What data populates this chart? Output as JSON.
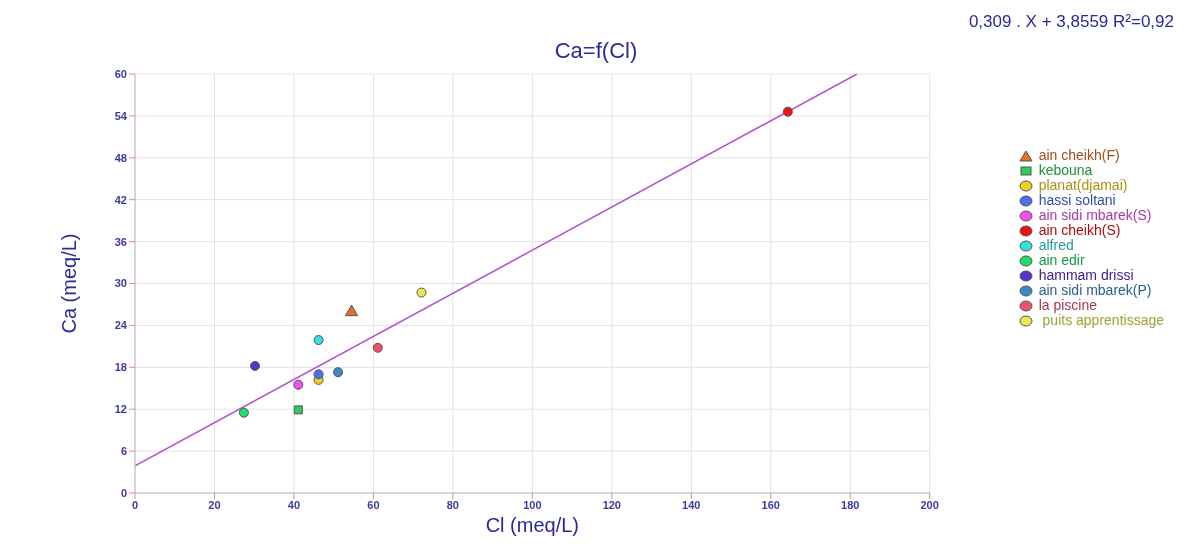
{
  "chart_data": {
    "type": "scatter",
    "title": "Ca=f(Cl)",
    "xlabel": "Cl  (meq/L)",
    "ylabel": "Ca  (meq/L)",
    "annotations": [
      "0,309 . X  + 3,8559   R²=0,92"
    ],
    "xlim": [
      0,
      200
    ],
    "xticks": [
      0,
      20,
      40,
      60,
      80,
      100,
      120,
      140,
      160,
      180,
      200
    ],
    "ylim": [
      0,
      60
    ],
    "yticks": [
      0,
      6,
      12,
      18,
      24,
      30,
      36,
      42,
      48,
      54,
      60
    ],
    "grid": true,
    "legend": "top right",
    "series": [
      {
        "name": "ain cheikh(F)",
        "color": "#e8702a",
        "marker": "triangle",
        "x": [
          54.5
        ],
        "values": [
          25.9
        ]
      },
      {
        "name": "kebouna",
        "color": "#2ecc55",
        "marker": "square",
        "x": [
          41.1
        ],
        "values": [
          11.9
        ]
      },
      {
        "name": "planat(djamai)",
        "color": "#f0d020",
        "marker": "circle",
        "x": [
          46.2
        ],
        "values": [
          16.2
        ]
      },
      {
        "name": "hassi soltani",
        "color": "#4a6ff0",
        "marker": "circle",
        "x": [
          46.2
        ],
        "values": [
          17.0
        ]
      },
      {
        "name": "ain sidi mbarek(S)",
        "color": "#f050f0",
        "marker": "circle",
        "x": [
          41.1
        ],
        "values": [
          15.5
        ]
      },
      {
        "name": "ain cheikh(S)",
        "color": "#ee1111",
        "marker": "circle",
        "x": [
          164.3
        ],
        "values": [
          54.6
        ]
      },
      {
        "name": "alfred",
        "color": "#33e0e0",
        "marker": "circle",
        "x": [
          46.2
        ],
        "values": [
          21.9
        ]
      },
      {
        "name": "ain edir",
        "color": "#22dd66",
        "marker": "circle",
        "x": [
          27.4
        ],
        "values": [
          11.5
        ]
      },
      {
        "name": "hammam drissi",
        "color": "#5533cc",
        "marker": "circle",
        "x": [
          30.2
        ],
        "values": [
          18.2
        ]
      },
      {
        "name": "ain sidi mbarek(P)",
        "color": "#3a8ac8",
        "marker": "circle",
        "x": [
          51.1
        ],
        "values": [
          17.3
        ]
      },
      {
        "name": "la piscine",
        "color": "#f05070",
        "marker": "circle",
        "x": [
          61.1
        ],
        "values": [
          20.8
        ]
      },
      {
        "name": " puits apprentissage",
        "color": "#e8e850",
        "marker": "circle",
        "x": [
          72.1
        ],
        "values": [
          28.7
        ]
      },
      {
        "type": "line",
        "color": "#b050d0",
        "x": [
          0,
          181.7
        ],
        "values": [
          3.9,
          60.0
        ]
      }
    ]
  }
}
